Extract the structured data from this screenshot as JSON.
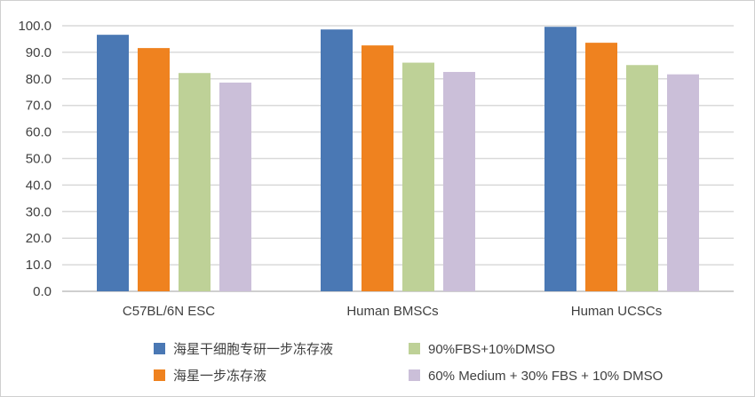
{
  "chart_data": {
    "type": "bar",
    "categories": [
      "C57BL/6N ESC",
      "Human BMSCs",
      "Human UCSCs"
    ],
    "series": [
      {
        "name": "海星干细胞专研一步冻存液",
        "color": "#4a78b4",
        "values": [
          96.6,
          98.6,
          99.6
        ]
      },
      {
        "name": "海星一步冻存液",
        "color": "#ef821f",
        "values": [
          91.6,
          92.6,
          93.6
        ]
      },
      {
        "name": "90%FBS+10%DMSO",
        "color": "#bed197",
        "values": [
          82.2,
          86.1,
          85.2
        ]
      },
      {
        "name": "60% Medium + 30% FBS + 10% DMSO",
        "color": "#cbbfd9",
        "values": [
          78.6,
          82.6,
          81.7
        ]
      }
    ],
    "yticks": [
      "0.0",
      "10.0",
      "20.0",
      "30.0",
      "40.0",
      "50.0",
      "60.0",
      "70.0",
      "80.0",
      "90.0",
      "100.0"
    ],
    "ylim": [
      0,
      100
    ],
    "grid": true,
    "legend": "bottom",
    "title": "",
    "xlabel": "",
    "ylabel": ""
  }
}
